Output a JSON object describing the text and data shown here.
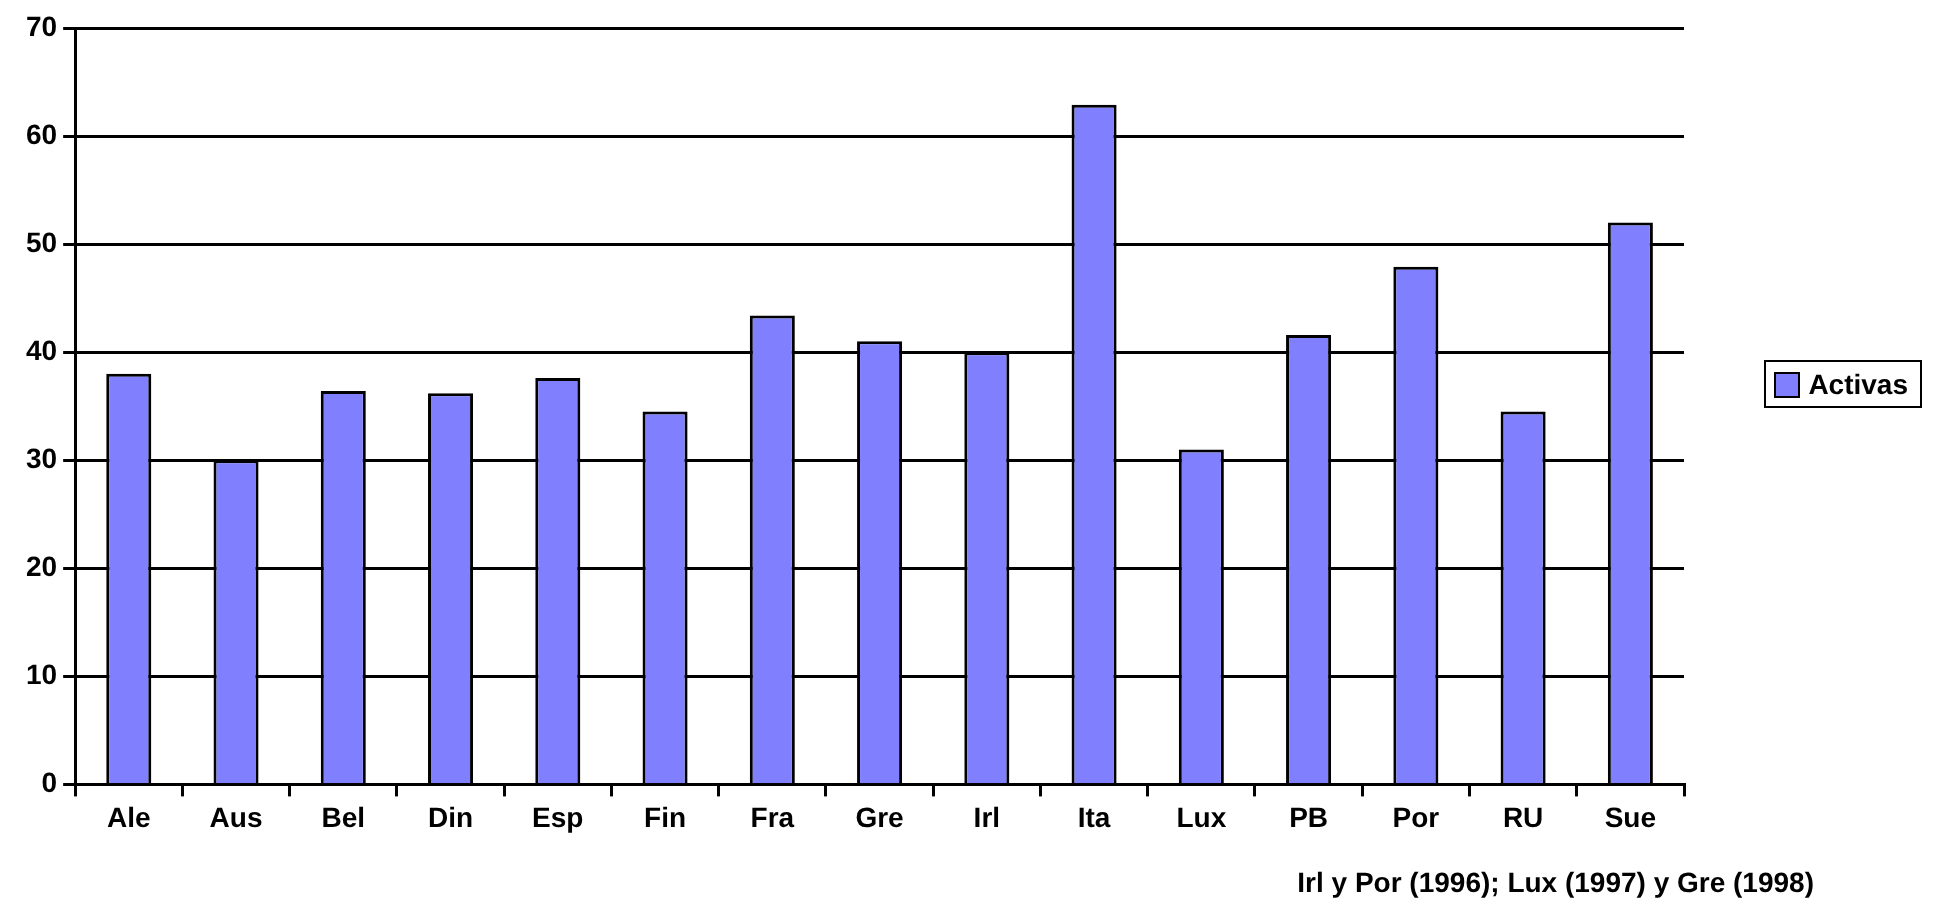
{
  "chart_data": {
    "type": "bar",
    "categories": [
      "Ale",
      "Aus",
      "Bel",
      "Din",
      "Esp",
      "Fin",
      "Fra",
      "Gre",
      "Irl",
      "Ita",
      "Lux",
      "PB",
      "Por",
      "RU",
      "Sue"
    ],
    "series": [
      {
        "name": "Activas",
        "color": "#8080ff",
        "values": [
          38,
          30,
          36.4,
          36.2,
          37.6,
          34.5,
          43.4,
          41,
          40,
          62.9,
          31,
          41.6,
          47.9,
          34.5,
          52
        ]
      }
    ],
    "ylim": [
      0,
      70
    ],
    "yticks": [
      0,
      10,
      20,
      30,
      40,
      50,
      60,
      70
    ],
    "grid": "y",
    "legend": "right",
    "annotations": [
      "Irl y Por (1996);  Lux (1997) y Gre (1998)"
    ]
  }
}
